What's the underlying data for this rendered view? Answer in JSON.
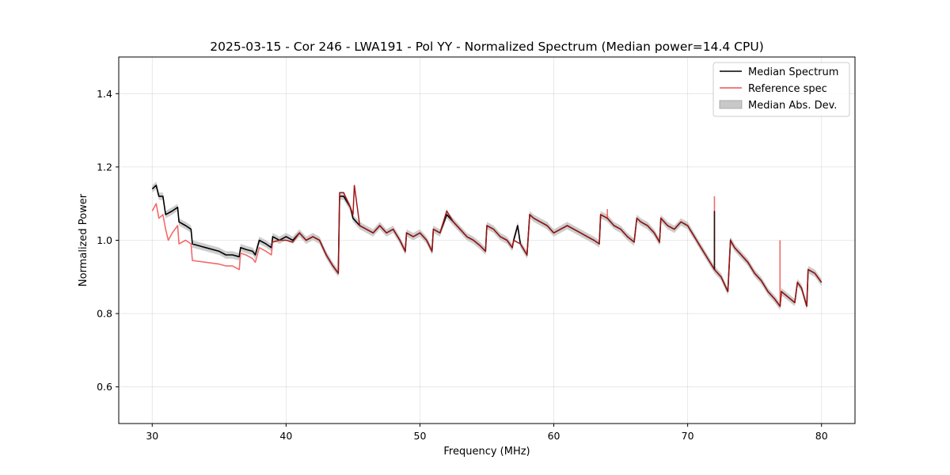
{
  "chart_data": {
    "type": "line",
    "title": "2025-03-15 - Cor 246 - LWA191 - Pol YY - Normalized Spectrum (Median power=14.4 CPU)",
    "xlabel": "Frequency (MHz)",
    "ylabel": "Normalized Power",
    "xlim": [
      27.5,
      82.5
    ],
    "ylim": [
      0.5,
      1.5
    ],
    "xticks": [
      30,
      40,
      50,
      60,
      70,
      80
    ],
    "yticks": [
      0.6,
      0.8,
      1.0,
      1.2,
      1.4
    ],
    "xtick_labels": [
      "30",
      "40",
      "50",
      "60",
      "70",
      "80"
    ],
    "ytick_labels": [
      "0.6",
      "0.8",
      "1.0",
      "1.2",
      "1.4"
    ],
    "grid": true,
    "legend_position": "top-right",
    "mad_halfwidth": 0.01,
    "series": [
      {
        "name": "Median Spectrum",
        "color": "#000000",
        "x": [
          30.0,
          30.3,
          30.5,
          30.8,
          31.0,
          31.5,
          31.9,
          32.0,
          32.5,
          32.9,
          33.0,
          34.0,
          35.0,
          35.5,
          36.0,
          36.5,
          36.6,
          37.0,
          37.5,
          37.7,
          38.0,
          38.5,
          38.9,
          39.0,
          39.5,
          40.0,
          40.5,
          41.0,
          41.5,
          42.0,
          42.5,
          43.0,
          43.5,
          43.9,
          44.0,
          44.3,
          44.8,
          45.0,
          45.5,
          46.0,
          46.5,
          47.0,
          47.5,
          48.0,
          48.5,
          48.9,
          49.0,
          49.5,
          50.0,
          50.5,
          50.9,
          51.0,
          51.5,
          52.0,
          52.5,
          53.0,
          53.5,
          54.0,
          54.5,
          54.9,
          55.0,
          55.5,
          56.0,
          56.5,
          56.9,
          57.0,
          57.3,
          57.5,
          58.0,
          58.2,
          58.5,
          59.0,
          59.5,
          60.0,
          60.5,
          61.0,
          61.5,
          62.0,
          62.5,
          63.0,
          63.4,
          63.5,
          64.0,
          64.5,
          65.0,
          65.5,
          66.0,
          66.2,
          66.5,
          67.0,
          67.5,
          67.9,
          68.0,
          68.5,
          69.0,
          69.5,
          70.0,
          70.5,
          71.0,
          71.5,
          72.0,
          72.5,
          73.0,
          73.2,
          73.5,
          74.0,
          74.5,
          75.0,
          75.5,
          76.0,
          76.5,
          76.9,
          77.0,
          77.5,
          78.0,
          78.2,
          78.5,
          78.9,
          79.0,
          79.5,
          80.0
        ],
        "y": [
          1.14,
          1.15,
          1.12,
          1.12,
          1.07,
          1.08,
          1.09,
          1.05,
          1.04,
          1.03,
          0.99,
          0.98,
          0.97,
          0.96,
          0.96,
          0.955,
          0.98,
          0.975,
          0.97,
          0.96,
          1.0,
          0.99,
          0.98,
          1.01,
          1.0,
          1.01,
          1.0,
          1.02,
          1.0,
          1.01,
          1.0,
          0.96,
          0.93,
          0.91,
          1.12,
          1.12,
          1.09,
          1.06,
          1.04,
          1.03,
          1.02,
          1.04,
          1.02,
          1.03,
          1.0,
          0.97,
          1.02,
          1.01,
          1.02,
          1.0,
          0.97,
          1.03,
          1.02,
          1.07,
          1.05,
          1.03,
          1.01,
          1.0,
          0.985,
          0.97,
          1.04,
          1.03,
          1.01,
          1.0,
          0.98,
          1.0,
          1.04,
          0.99,
          0.96,
          1.07,
          1.06,
          1.05,
          1.04,
          1.02,
          1.03,
          1.04,
          1.03,
          1.02,
          1.01,
          1.0,
          0.99,
          1.07,
          1.06,
          1.04,
          1.03,
          1.01,
          0.995,
          1.06,
          1.05,
          1.04,
          1.02,
          0.995,
          1.06,
          1.04,
          1.03,
          1.05,
          1.04,
          1.01,
          0.98,
          0.95,
          0.92,
          0.9,
          0.86,
          1.0,
          0.98,
          0.96,
          0.94,
          0.91,
          0.89,
          0.86,
          0.84,
          0.82,
          0.86,
          0.845,
          0.83,
          0.885,
          0.87,
          0.82,
          0.92,
          0.91,
          0.885
        ]
      },
      {
        "name": "Reference spec",
        "color": "#f05050",
        "x": [
          30.0,
          30.3,
          30.5,
          30.8,
          31.0,
          31.2,
          31.5,
          31.9,
          32.0,
          32.5,
          32.9,
          33.0,
          34.0,
          35.0,
          35.5,
          36.0,
          36.5,
          36.6,
          37.0,
          37.5,
          37.7,
          38.0,
          38.5,
          38.9,
          39.0,
          39.5,
          40.0,
          40.5,
          41.0,
          41.5,
          42.0,
          42.5,
          43.0,
          43.5,
          43.9,
          44.0,
          44.3,
          44.8,
          45.0,
          45.1,
          45.5,
          46.0,
          46.5,
          47.0,
          47.5,
          48.0,
          48.5,
          48.9,
          49.0,
          49.5,
          50.0,
          50.5,
          50.9,
          51.0,
          51.5,
          52.0,
          52.5,
          53.0,
          53.5,
          54.0,
          54.5,
          54.9,
          55.0,
          55.5,
          56.0,
          56.5,
          56.9,
          57.0,
          57.5,
          58.0,
          58.2,
          58.5,
          59.0,
          59.5,
          60.0,
          60.5,
          61.0,
          61.5,
          62.0,
          62.5,
          63.0,
          63.4,
          63.5,
          64.0,
          64.5,
          65.0,
          65.5,
          66.0,
          66.2,
          66.5,
          67.0,
          67.5,
          67.9,
          68.0,
          68.5,
          69.0,
          69.5,
          70.0,
          70.5,
          71.0,
          71.5,
          72.0,
          72.5,
          73.0,
          73.2,
          73.5,
          74.0,
          74.5,
          75.0,
          75.5,
          76.0,
          76.5,
          76.9,
          77.0,
          77.5,
          78.0,
          78.2,
          78.5,
          78.9,
          79.0,
          79.5,
          80.0
        ],
        "y": [
          1.08,
          1.1,
          1.06,
          1.07,
          1.03,
          1.0,
          1.02,
          1.04,
          0.99,
          1.0,
          0.99,
          0.945,
          0.94,
          0.935,
          0.93,
          0.93,
          0.92,
          0.965,
          0.96,
          0.95,
          0.94,
          0.98,
          0.97,
          0.96,
          0.995,
          1.0,
          1.0,
          0.995,
          1.02,
          1.0,
          1.01,
          1.0,
          0.96,
          0.93,
          0.91,
          1.13,
          1.13,
          1.09,
          1.07,
          1.15,
          1.04,
          1.03,
          1.02,
          1.04,
          1.02,
          1.03,
          1.0,
          0.97,
          1.02,
          1.01,
          1.02,
          1.0,
          0.97,
          1.03,
          1.02,
          1.08,
          1.05,
          1.03,
          1.01,
          1.0,
          0.985,
          0.97,
          1.04,
          1.03,
          1.01,
          1.0,
          0.98,
          1.0,
          0.99,
          0.96,
          1.07,
          1.06,
          1.05,
          1.04,
          1.02,
          1.03,
          1.04,
          1.03,
          1.02,
          1.01,
          1.0,
          0.99,
          1.07,
          1.06,
          1.04,
          1.03,
          1.01,
          0.995,
          1.06,
          1.05,
          1.04,
          1.02,
          0.995,
          1.06,
          1.04,
          1.03,
          1.05,
          1.04,
          1.01,
          0.98,
          0.95,
          0.92,
          0.9,
          0.86,
          1.0,
          0.98,
          0.96,
          0.94,
          0.91,
          0.89,
          0.86,
          0.84,
          0.82,
          0.86,
          0.845,
          0.83,
          0.885,
          0.87,
          0.82,
          0.92,
          0.91,
          0.885
        ]
      }
    ],
    "spikes": [
      {
        "series": "Median Spectrum",
        "x": 57.3,
        "y": 1.04
      },
      {
        "series": "Reference spec",
        "x": 64.0,
        "y": 1.085
      },
      {
        "series": "Reference spec",
        "x": 72.0,
        "y": 1.12
      },
      {
        "series": "Median Spectrum",
        "x": 72.0,
        "y": 1.08
      },
      {
        "series": "Reference spec",
        "x": 76.9,
        "y": 1.0
      }
    ],
    "legend": [
      {
        "label": "Median Spectrum",
        "kind": "line",
        "color": "#000000"
      },
      {
        "label": "Reference spec",
        "kind": "line",
        "color": "#f05050"
      },
      {
        "label": "Median Abs. Dev.",
        "kind": "patch",
        "color": "#c8c8c8"
      }
    ]
  }
}
